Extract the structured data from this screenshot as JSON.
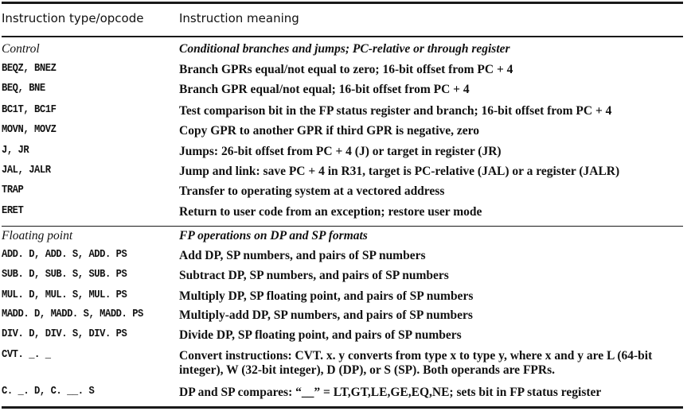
{
  "header": {
    "col1": "Instruction type/opcode",
    "col2": "Instruction meaning"
  },
  "sections": [
    {
      "title": "Control",
      "description": "Conditional branches and jumps; PC-relative or through register",
      "rows": [
        {
          "opcode": "BEQZ, BNEZ",
          "meaning": "Branch GPRs equal/not equal to zero; 16-bit offset from PC + 4"
        },
        {
          "opcode": "BEQ, BNE",
          "meaning": "Branch GPR equal/not equal; 16-bit offset from PC + 4"
        },
        {
          "opcode": "BC1T, BC1F",
          "meaning": "Test comparison bit in the FP status register and branch; 16-bit offset from PC + 4"
        },
        {
          "opcode": "MOVN, MOVZ",
          "meaning": "Copy GPR to another GPR if third GPR is negative, zero"
        },
        {
          "opcode": "J, JR",
          "meaning": "Jumps: 26-bit offset from PC + 4 (J) or target in register (JR)"
        },
        {
          "opcode": "JAL, JALR",
          "meaning": "Jump and link: save PC + 4 in R31, target is PC-relative (JAL) or a register (JALR)"
        },
        {
          "opcode": "TRAP",
          "meaning": "Transfer to operating system at a vectored address"
        },
        {
          "opcode": "ERET",
          "meaning": "Return to user code from an exception; restore user mode"
        }
      ]
    },
    {
      "title": "Floating point",
      "description": "FP operations on DP and SP formats",
      "rows": [
        {
          "opcode": "ADD. D, ADD. S, ADD. PS",
          "meaning": "Add DP, SP numbers, and pairs of SP numbers"
        },
        {
          "opcode": "SUB. D, SUB. S, SUB. PS",
          "meaning": "Subtract DP, SP numbers, and pairs of SP numbers"
        },
        {
          "opcode": "MUL. D, MUL. S, MUL. PS",
          "meaning": "Multiply DP, SP floating point, and pairs of SP numbers"
        },
        {
          "opcode": "MADD. D, MADD. S, MADD. PS",
          "meaning": "Multiply-add DP, SP numbers, and pairs of SP numbers"
        },
        {
          "opcode": "DIV. D, DIV. S, DIV. PS",
          "meaning": "Divide DP, SP floating point, and pairs of SP numbers"
        },
        {
          "opcode": "CVT. _. _",
          "meaning": "Convert instructions: CVT. x. y converts from type x to type y, where x and y are L (64-bit integer), W (32-bit integer), D (DP), or S (SP). Both operands are FPRs."
        },
        {
          "opcode": "C. _. D, C. __. S",
          "meaning": "DP and SP compares: “__” = LT,GT,LE,GE,EQ,NE; sets bit in FP status register"
        }
      ]
    }
  ]
}
